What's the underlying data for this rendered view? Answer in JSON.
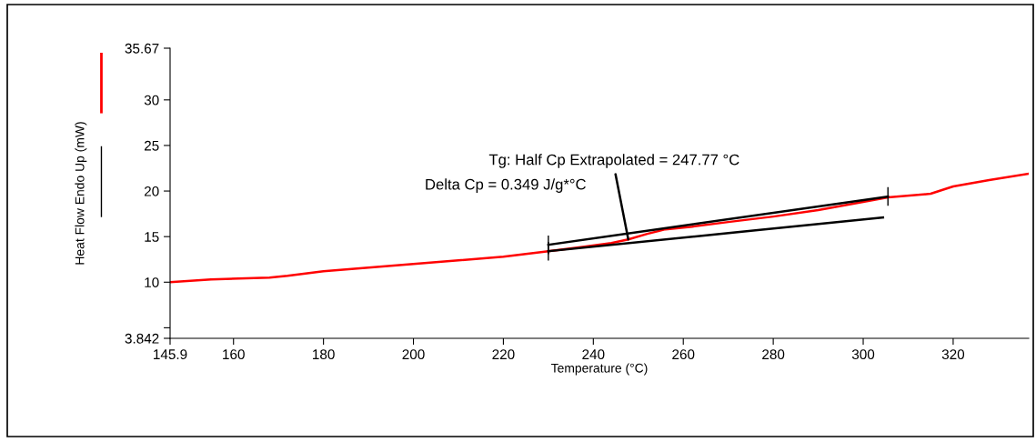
{
  "chart_data": {
    "type": "line",
    "xlabel": "Temperature (°C)",
    "ylabel": "Heat Flow Endo Up (mW)",
    "xlim": [
      145.9,
      336.8
    ],
    "ylim": [
      3.842,
      35.67
    ],
    "xticks": [
      145.9,
      160,
      180,
      200,
      220,
      240,
      260,
      280,
      300,
      320
    ],
    "yticks": [
      3.842,
      {
        "value": 5,
        "label": null
      },
      10,
      15,
      20,
      25,
      30,
      35.67
    ],
    "grid": false,
    "legend": false,
    "marker": "none",
    "line_style": "solid",
    "series": [
      {
        "color": "#ff0000",
        "x": [
          145.9,
          155,
          168,
          172,
          180,
          190,
          200,
          210,
          220,
          230,
          238,
          244,
          247.77,
          252,
          256,
          262,
          270,
          280,
          290,
          300,
          305.5,
          315,
          320,
          328,
          336.8
        ],
        "values": [
          10.0,
          10.3,
          10.5,
          10.7,
          11.2,
          11.6,
          12.0,
          12.4,
          12.8,
          13.4,
          13.9,
          14.3,
          14.7,
          15.3,
          15.8,
          16.1,
          16.6,
          17.2,
          17.9,
          18.8,
          19.3,
          19.7,
          20.5,
          21.2,
          21.9
        ]
      },
      {
        "color": "#000000",
        "x": [
          230,
          305.5
        ],
        "values": [
          14.1,
          19.4
        ]
      },
      {
        "color": "#000000",
        "x": [
          230,
          304.4
        ],
        "values": [
          13.4,
          17.1
        ]
      }
    ],
    "annotations": [
      {
        "text": "Tg: Half Cp Extrapolated = 247.77 °C",
        "x": 247.77,
        "y": 14.7
      },
      "Delta Cp = 0.349 J/g*°C"
    ]
  }
}
